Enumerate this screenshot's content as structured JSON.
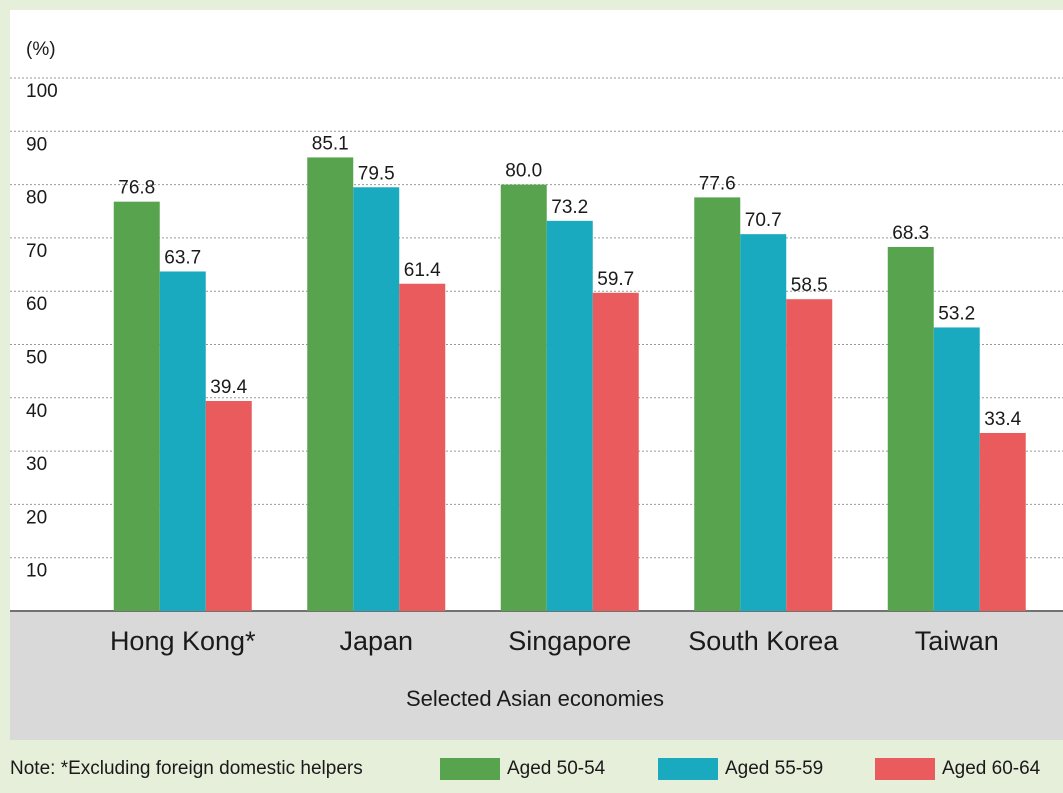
{
  "chart_data": {
    "type": "bar",
    "y_unit_label": "(%)",
    "x_axis_label": "Selected Asian economies",
    "note": "Note:  *Excluding foreign domestic helpers",
    "categories": [
      "Hong Kong*",
      "Japan",
      "Singapore",
      "South Korea",
      "Taiwan"
    ],
    "series": [
      {
        "name": "Aged 50-54",
        "color": "#58a44e",
        "values": [
          76.8,
          85.1,
          80.0,
          77.6,
          68.3
        ],
        "value_labels": [
          "76.8",
          "85.1",
          "80.0",
          "77.6",
          "68.3"
        ]
      },
      {
        "name": "Aged 55-59",
        "color": "#1aaabf",
        "values": [
          63.7,
          79.5,
          73.2,
          70.7,
          53.2
        ],
        "value_labels": [
          "63.7",
          "79.5",
          "73.2",
          "70.7",
          "53.2"
        ]
      },
      {
        "name": "Aged 60-64",
        "color": "#e95b5c",
        "values": [
          39.4,
          61.4,
          59.7,
          58.5,
          33.4
        ],
        "value_labels": [
          "39.4",
          "61.4",
          "59.7",
          "58.5",
          "33.4"
        ]
      }
    ],
    "ylim": [
      0,
      100
    ],
    "yticks": [
      10,
      20,
      30,
      40,
      50,
      60,
      70,
      80,
      90,
      100
    ],
    "grid": true
  }
}
